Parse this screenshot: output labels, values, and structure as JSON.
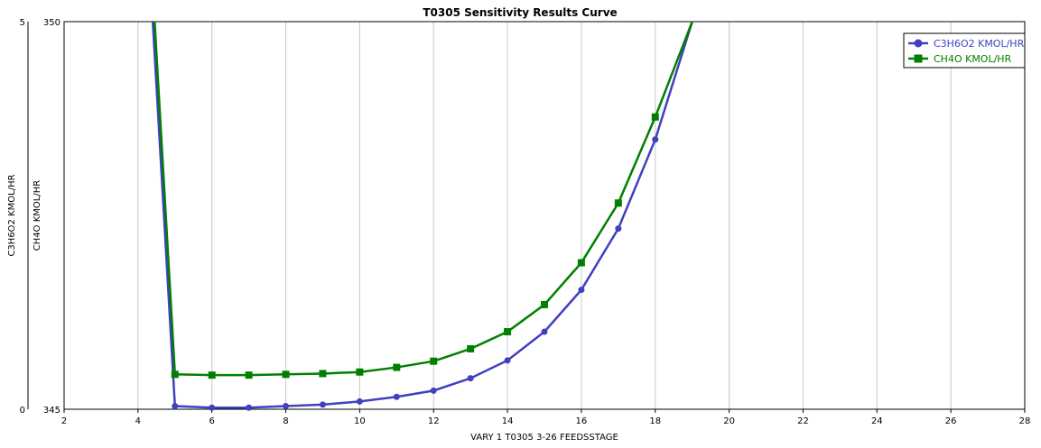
{
  "chart_data": {
    "type": "line",
    "title": "T0305 Sensitivity Results Curve",
    "xlabel": "VARY   1 T0305 3-26 FEEDSSTAGE",
    "x_ticks": [
      2,
      4,
      6,
      8,
      10,
      12,
      14,
      16,
      18,
      20,
      22,
      24,
      26,
      28
    ],
    "xlim": [
      2,
      28
    ],
    "grid": true,
    "legend_position": "top-right",
    "y_axes": [
      {
        "label": "C3H6O2 KMOL/HR",
        "range": [
          0,
          5
        ],
        "tick_labels": [
          "0",
          "5"
        ],
        "color": "#000000"
      },
      {
        "label": "CH4O KMOL/HR",
        "range": [
          345,
          350
        ],
        "tick_labels": [
          "345",
          "350"
        ],
        "color": "#000000"
      }
    ],
    "series": [
      {
        "name": "C3H6O2 KMOL/HR",
        "axis": 0,
        "color": "#4040c0",
        "marker": "circle",
        "x": [
          5,
          6,
          7,
          8,
          9,
          10,
          11,
          12,
          13,
          14,
          15,
          16,
          17,
          18,
          19
        ],
        "y": [
          0.04,
          0.02,
          0.02,
          0.04,
          0.06,
          0.1,
          0.16,
          0.24,
          0.4,
          0.63,
          1.0,
          1.54,
          2.33,
          3.48,
          5.0
        ],
        "draw_from_top_at_x": 4.4,
        "show_marker_last": false
      },
      {
        "name": "CH4O KMOL/HR",
        "axis": 1,
        "color": "#008000",
        "marker": "square",
        "x": [
          5,
          6,
          7,
          8,
          9,
          10,
          11,
          12,
          13,
          14,
          15,
          16,
          17,
          18,
          19
        ],
        "y": [
          345.45,
          345.44,
          345.44,
          345.45,
          345.46,
          345.48,
          345.54,
          345.62,
          345.78,
          346.0,
          346.35,
          346.89,
          347.66,
          348.77,
          350.0
        ],
        "draw_from_top_at_x": 4.45,
        "show_marker_last": false
      }
    ]
  }
}
